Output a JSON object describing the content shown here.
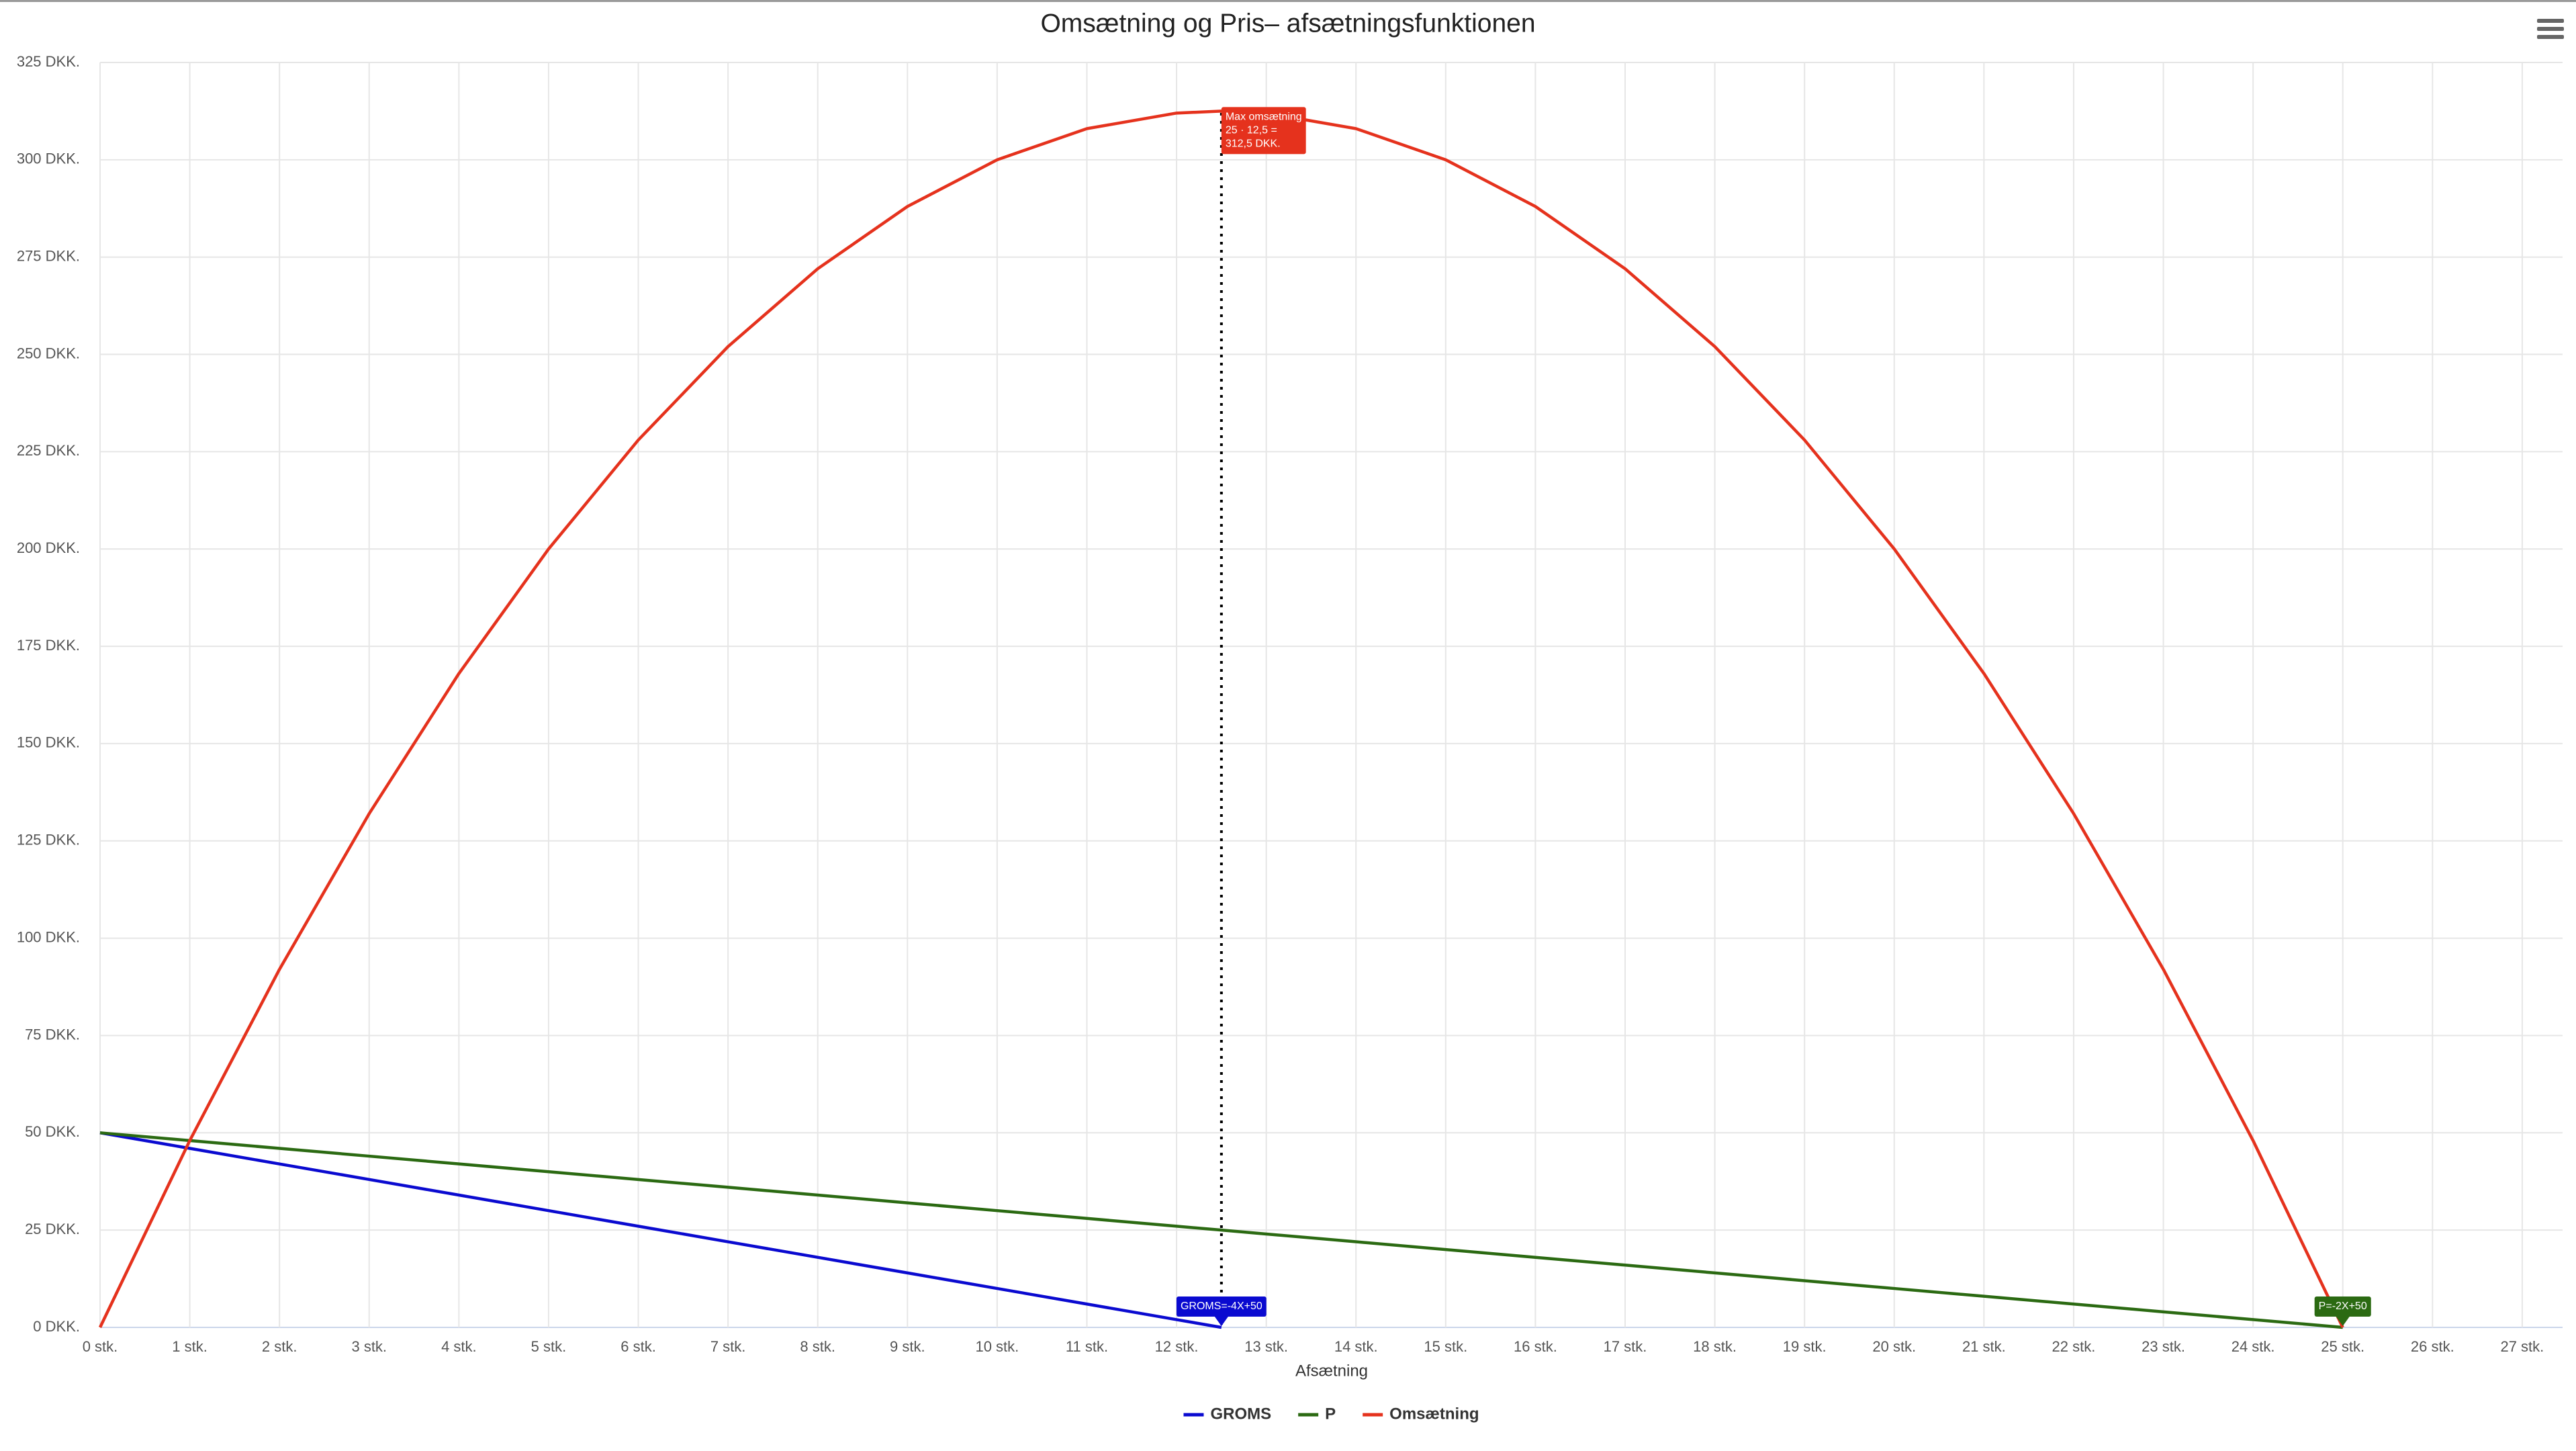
{
  "chart_data": {
    "type": "line",
    "title": "Omsætning og Pris– afsætningsfunktionen",
    "xlabel": "Afsætning",
    "x": [
      0,
      1,
      2,
      3,
      4,
      5,
      6,
      7,
      8,
      9,
      10,
      11,
      12,
      12.5,
      13,
      14,
      15,
      16,
      17,
      18,
      19,
      20,
      21,
      22,
      23,
      24,
      25
    ],
    "series": [
      {
        "name": "GROMS",
        "color": "#0a0ad0",
        "values": [
          50,
          46,
          42,
          38,
          34,
          30,
          26,
          22,
          18,
          14,
          10,
          6,
          2,
          0,
          null,
          null,
          null,
          null,
          null,
          null,
          null,
          null,
          null,
          null,
          null,
          null,
          null
        ]
      },
      {
        "name": "P",
        "color": "#2b6a12",
        "values": [
          50,
          48,
          46,
          44,
          42,
          40,
          38,
          36,
          34,
          32,
          30,
          28,
          26,
          25,
          24,
          22,
          20,
          18,
          16,
          14,
          12,
          10,
          8,
          6,
          4,
          2,
          0
        ]
      },
      {
        "name": "Omsætning",
        "color": "#e5321d",
        "values": [
          0,
          48,
          92,
          132,
          168,
          200,
          228,
          252,
          272,
          288,
          300,
          308,
          312,
          312.5,
          312,
          308,
          300,
          288,
          272,
          252,
          228,
          200,
          168,
          132,
          92,
          48,
          0
        ]
      }
    ],
    "xlim": [
      0,
      27.45
    ],
    "ylim": [
      0,
      325
    ],
    "xticks": [
      {
        "value": 0,
        "label": "0 stk."
      },
      {
        "value": 1,
        "label": "1 stk."
      },
      {
        "value": 2,
        "label": "2 stk."
      },
      {
        "value": 3,
        "label": "3 stk."
      },
      {
        "value": 4,
        "label": "4 stk."
      },
      {
        "value": 5,
        "label": "5 stk."
      },
      {
        "value": 6,
        "label": "6 stk."
      },
      {
        "value": 7,
        "label": "7 stk."
      },
      {
        "value": 8,
        "label": "8 stk."
      },
      {
        "value": 9,
        "label": "9 stk."
      },
      {
        "value": 10,
        "label": "10 stk."
      },
      {
        "value": 11,
        "label": "11 stk."
      },
      {
        "value": 12,
        "label": "12 stk."
      },
      {
        "value": 13,
        "label": "13 stk."
      },
      {
        "value": 14,
        "label": "14 stk."
      },
      {
        "value": 15,
        "label": "15 stk."
      },
      {
        "value": 16,
        "label": "16 stk."
      },
      {
        "value": 17,
        "label": "17 stk."
      },
      {
        "value": 18,
        "label": "18 stk."
      },
      {
        "value": 19,
        "label": "19 stk."
      },
      {
        "value": 20,
        "label": "20 stk."
      },
      {
        "value": 21,
        "label": "21 stk."
      },
      {
        "value": 22,
        "label": "22 stk."
      },
      {
        "value": 23,
        "label": "23 stk."
      },
      {
        "value": 24,
        "label": "24 stk."
      },
      {
        "value": 25,
        "label": "25 stk."
      },
      {
        "value": 26,
        "label": "26 stk."
      },
      {
        "value": 27,
        "label": "27 stk."
      }
    ],
    "yticks": [
      {
        "value": 0,
        "label": "0 DKK."
      },
      {
        "value": 25,
        "label": "25 DKK."
      },
      {
        "value": 50,
        "label": "50 DKK."
      },
      {
        "value": 75,
        "label": "75 DKK."
      },
      {
        "value": 100,
        "label": "100 DKK."
      },
      {
        "value": 125,
        "label": "125 DKK."
      },
      {
        "value": 150,
        "label": "150 DKK."
      },
      {
        "value": 175,
        "label": "175 DKK."
      },
      {
        "value": 200,
        "label": "200 DKK."
      },
      {
        "value": 225,
        "label": "225 DKK."
      },
      {
        "value": 250,
        "label": "250 DKK."
      },
      {
        "value": 275,
        "label": "275 DKK."
      },
      {
        "value": 300,
        "label": "300 DKK."
      },
      {
        "value": 325,
        "label": "325 DKK."
      }
    ],
    "grid": true,
    "legend": "bottom",
    "x_plot_lines": [
      12.5
    ],
    "annotations": [
      {
        "text": [
          "Max omsætning",
          "25 · 12,5 =",
          "312,5 DKK."
        ],
        "x": 12.5,
        "y": 312.5,
        "color": "#e5321d"
      },
      {
        "text": [
          "GROMS=-4X+50"
        ],
        "x": 12.5,
        "y": 0,
        "color": "#0a0ad0"
      },
      {
        "text": [
          "P=-2X+50"
        ],
        "x": 25,
        "y": 0,
        "color": "#2b6a12"
      }
    ]
  }
}
